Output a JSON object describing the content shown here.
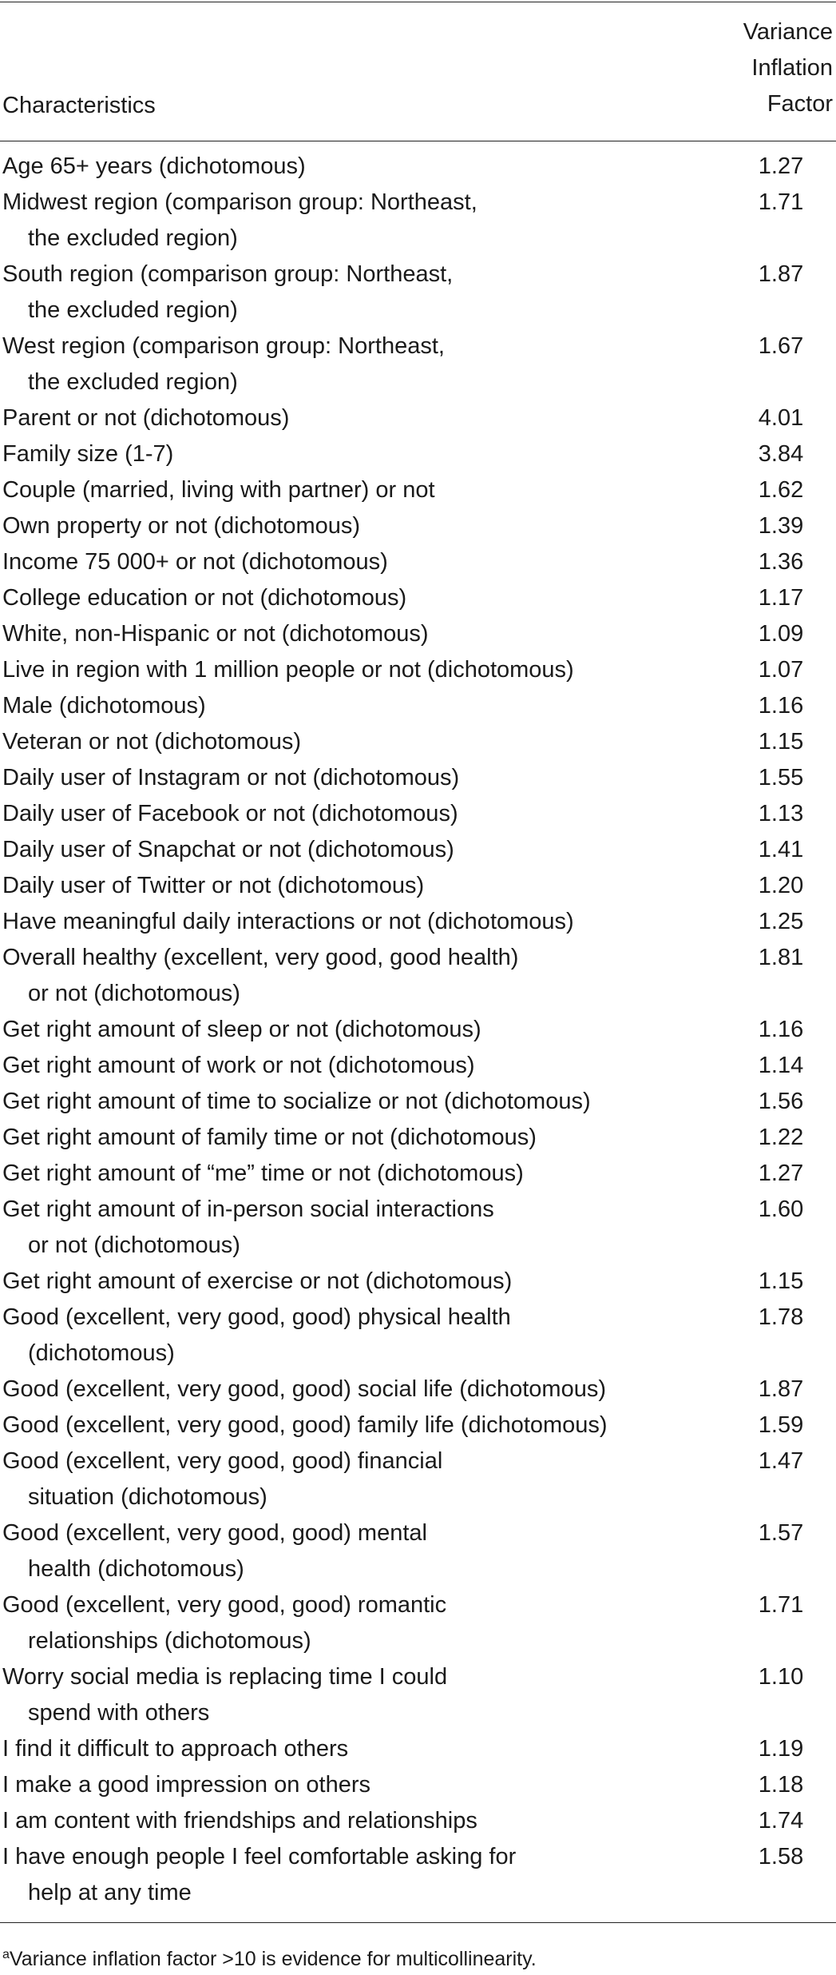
{
  "table": {
    "header": {
      "label": "Characteristics",
      "value_column": [
        "Variance",
        "Inflation",
        "Factor"
      ]
    },
    "rows": [
      {
        "lines": [
          "Age 65+ years (dichotomous)"
        ],
        "value": "1.27"
      },
      {
        "lines": [
          "Midwest region (comparison group: Northeast,",
          "the excluded region)"
        ],
        "value": "1.71"
      },
      {
        "lines": [
          "South region (comparison group: Northeast,",
          "the excluded region)"
        ],
        "value": "1.87"
      },
      {
        "lines": [
          "West region (comparison group: Northeast,",
          "the excluded region)"
        ],
        "value": "1.67"
      },
      {
        "lines": [
          "Parent or not (dichotomous)"
        ],
        "value": "4.01"
      },
      {
        "lines": [
          "Family size (1-7)"
        ],
        "value": "3.84"
      },
      {
        "lines": [
          "Couple (married, living with partner) or not"
        ],
        "value": "1.62"
      },
      {
        "lines": [
          "Own property or not (dichotomous)"
        ],
        "value": "1.39"
      },
      {
        "lines": [
          "Income 75 000+ or not (dichotomous)"
        ],
        "value": "1.36"
      },
      {
        "lines": [
          "College education or not (dichotomous)"
        ],
        "value": "1.17"
      },
      {
        "lines": [
          "White, non-Hispanic or not (dichotomous)"
        ],
        "value": "1.09"
      },
      {
        "lines": [
          "Live in region with 1 million people or not (dichotomous)"
        ],
        "value": "1.07"
      },
      {
        "lines": [
          "Male (dichotomous)"
        ],
        "value": "1.16"
      },
      {
        "lines": [
          "Veteran or not (dichotomous)"
        ],
        "value": "1.15"
      },
      {
        "lines": [
          "Daily user of Instagram or not (dichotomous)"
        ],
        "value": "1.55"
      },
      {
        "lines": [
          "Daily user of Facebook or not (dichotomous)"
        ],
        "value": "1.13"
      },
      {
        "lines": [
          "Daily user of Snapchat or not (dichotomous)"
        ],
        "value": "1.41"
      },
      {
        "lines": [
          "Daily user of Twitter or not (dichotomous)"
        ],
        "value": "1.20"
      },
      {
        "lines": [
          "Have meaningful daily interactions or not (dichotomous)"
        ],
        "value": "1.25"
      },
      {
        "lines": [
          "Overall healthy (excellent, very good, good health)",
          "or not (dichotomous)"
        ],
        "value": "1.81"
      },
      {
        "lines": [
          "Get right amount of sleep or not (dichotomous)"
        ],
        "value": "1.16"
      },
      {
        "lines": [
          "Get right amount of work or not (dichotomous)"
        ],
        "value": "1.14"
      },
      {
        "lines": [
          "Get right amount of time to socialize or not (dichotomous)"
        ],
        "value": "1.56"
      },
      {
        "lines": [
          "Get right amount of family time or not (dichotomous)"
        ],
        "value": "1.22"
      },
      {
        "lines": [
          "Get right amount of “me” time or not (dichotomous)"
        ],
        "value": "1.27"
      },
      {
        "lines": [
          "Get right amount of in-person social interactions",
          "or not (dichotomous)"
        ],
        "value": "1.60"
      },
      {
        "lines": [
          "Get right amount of exercise or not (dichotomous)"
        ],
        "value": "1.15"
      },
      {
        "lines": [
          "Good (excellent, very good, good) physical health",
          "(dichotomous)"
        ],
        "value": "1.78"
      },
      {
        "lines": [
          "Good (excellent, very good, good) social life (dichotomous)"
        ],
        "value": "1.87"
      },
      {
        "lines": [
          "Good (excellent, very good, good) family life (dichotomous)"
        ],
        "value": "1.59"
      },
      {
        "lines": [
          "Good (excellent, very good, good) financial",
          "situation (dichotomous)"
        ],
        "value": "1.47"
      },
      {
        "lines": [
          "Good (excellent, very good, good) mental",
          "health (dichotomous)"
        ],
        "value": "1.57"
      },
      {
        "lines": [
          "Good (excellent, very good, good) romantic",
          "relationships (dichotomous)"
        ],
        "value": "1.71"
      },
      {
        "lines": [
          "Worry social media is replacing time I could",
          "spend with others"
        ],
        "value": "1.10"
      },
      {
        "lines": [
          "I find it difficult to approach others"
        ],
        "value": "1.19"
      },
      {
        "lines": [
          "I make a good impression on others"
        ],
        "value": "1.18"
      },
      {
        "lines": [
          "I am content with friendships and relationships"
        ],
        "value": "1.74"
      },
      {
        "lines": [
          "I have enough people I feel comfortable asking for",
          "help at any time"
        ],
        "value": "1.58"
      }
    ]
  },
  "footnote": {
    "marker": "a",
    "text": "Variance inflation factor >10 is evidence for multicollinearity."
  }
}
